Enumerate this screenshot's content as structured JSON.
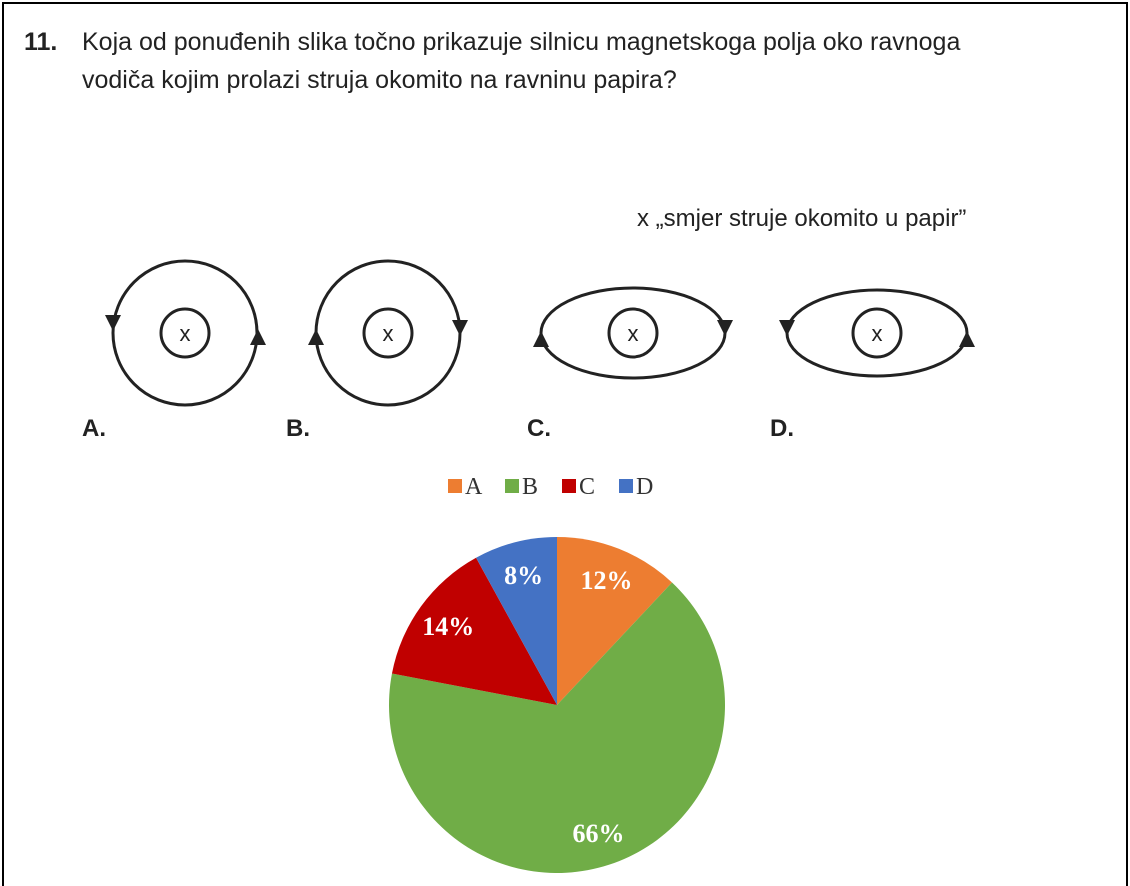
{
  "number": "11.",
  "question": [
    "Koja od ponuđenih slika točno prikazuje silnicu magnetskoga polja oko ravnoga",
    "vodiča kojim prolazi struja okomito na ravninu papira?"
  ],
  "note": "x „smjer struje okomito u papir”",
  "symbol": "x",
  "options": [
    "A.",
    "B.",
    "C.",
    "D."
  ],
  "chart_data": {
    "type": "pie",
    "categories": [
      "A",
      "B",
      "C",
      "D"
    ],
    "values": [
      12,
      66,
      14,
      8
    ],
    "value_labels": [
      "12%",
      "66%",
      "14%",
      "8%"
    ],
    "colors": [
      "#ed7d31",
      "#70ad47",
      "#c00000",
      "#4472c4"
    ],
    "legend": "top"
  }
}
